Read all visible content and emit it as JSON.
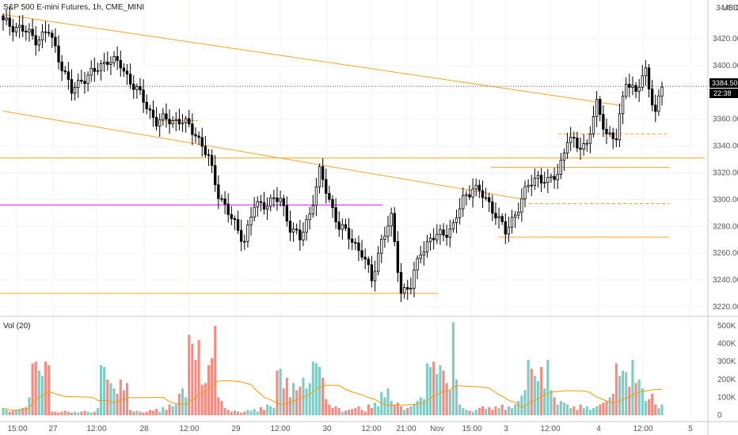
{
  "header": {
    "symbol_title": "S&P 500 E-mini Futures, 1h, CME_MINI",
    "currency": "USD",
    "volume_title": "Vol (20)"
  },
  "price_axis": {
    "min": 3220,
    "max": 3440,
    "ticks": [
      "3420.00",
      "3400.00",
      "3380.00",
      "3360.00",
      "3340.00",
      "3320.00",
      "3300.00",
      "3280.00",
      "3260.00",
      "3240.00",
      "3220.00"
    ],
    "top_tick": "3440.00"
  },
  "last_price": {
    "value": "3384.50",
    "countdown": "22:38"
  },
  "volume_axis": {
    "ticks": [
      "500K",
      "400K",
      "300K",
      "200K",
      "100K",
      "0"
    ]
  },
  "time_axis": {
    "labels": [
      "15:00",
      "27",
      "12:00",
      "28",
      "12:00",
      "29",
      "12:00",
      "30",
      "12:00",
      "21:00",
      "Nov",
      "15:00",
      "3",
      "12:00",
      "4",
      "12:00",
      "5"
    ]
  },
  "colors": {
    "up": "#26a69a",
    "down": "#ef5350",
    "candle_body": "#000000",
    "trend_line": "#f5a623",
    "magenta_line": "#e040fb",
    "volume_ma": "#ff9800",
    "volume_up": "#80cbc4",
    "volume_down": "#f28b82"
  },
  "chart_data": {
    "type": "candlestick",
    "price_anchors": [
      [
        0,
        3432
      ],
      [
        5,
        3428
      ],
      [
        10,
        3420
      ],
      [
        14,
        3425
      ],
      [
        18,
        3400
      ],
      [
        21,
        3380
      ],
      [
        24,
        3390
      ],
      [
        28,
        3395
      ],
      [
        32,
        3405
      ],
      [
        36,
        3400
      ],
      [
        40,
        3385
      ],
      [
        44,
        3370
      ],
      [
        47,
        3358
      ],
      [
        51,
        3360
      ],
      [
        55,
        3358
      ],
      [
        59,
        3350
      ],
      [
        63,
        3330
      ],
      [
        66,
        3305
      ],
      [
        70,
        3285
      ],
      [
        74,
        3270
      ],
      [
        77,
        3295
      ],
      [
        81,
        3298
      ],
      [
        85,
        3300
      ],
      [
        88,
        3280
      ],
      [
        91,
        3270
      ],
      [
        94,
        3290
      ],
      [
        97,
        3320
      ],
      [
        100,
        3300
      ],
      [
        103,
        3280
      ],
      [
        107,
        3270
      ],
      [
        110,
        3260
      ],
      [
        113,
        3240
      ],
      [
        116,
        3270
      ],
      [
        119,
        3285
      ],
      [
        122,
        3232
      ],
      [
        125,
        3235
      ],
      [
        128,
        3262
      ],
      [
        131,
        3270
      ],
      [
        135,
        3275
      ],
      [
        138,
        3280
      ],
      [
        141,
        3300
      ],
      [
        144,
        3310
      ],
      [
        148,
        3300
      ],
      [
        151,
        3290
      ],
      [
        154,
        3275
      ],
      [
        158,
        3295
      ],
      [
        161,
        3310
      ],
      [
        164,
        3318
      ],
      [
        167,
        3312
      ],
      [
        170,
        3320
      ],
      [
        173,
        3345
      ],
      [
        176,
        3340
      ],
      [
        179,
        3342
      ],
      [
        182,
        3370
      ],
      [
        185,
        3350
      ],
      [
        188,
        3345
      ],
      [
        191,
        3390
      ],
      [
        194,
        3380
      ],
      [
        197,
        3395
      ],
      [
        200,
        3365
      ],
      [
        202,
        3384.5
      ]
    ],
    "volume_values": [
      40,
      30,
      20,
      25,
      30,
      35,
      40,
      45,
      100,
      290,
      300,
      250,
      220,
      300,
      280,
      20,
      20,
      15,
      20,
      25,
      20,
      15,
      20,
      15,
      20,
      25,
      20,
      15,
      20,
      40,
      280,
      270,
      200,
      180,
      150,
      120,
      200,
      140,
      180,
      30,
      20,
      25,
      20,
      15,
      20,
      30,
      25,
      35,
      20,
      45,
      30,
      60,
      50,
      60,
      120,
      150,
      100,
      450,
      400,
      310,
      420,
      170,
      180,
      280,
      320,
      500,
      100,
      80,
      40,
      30,
      20,
      25,
      20,
      15,
      20,
      30,
      25,
      35,
      20,
      45,
      30,
      60,
      50,
      40,
      250,
      260,
      150,
      210,
      100,
      180,
      140,
      160,
      210,
      150,
      180,
      300,
      290,
      270,
      210,
      90,
      60,
      40,
      50,
      40,
      20,
      25,
      30,
      35,
      40,
      50,
      30,
      20,
      60,
      40,
      70,
      50,
      130,
      100,
      150,
      80,
      60,
      70,
      50,
      30,
      40,
      50,
      60,
      80,
      100,
      90,
      290,
      270,
      300,
      230,
      280,
      250,
      180,
      140,
      520,
      200,
      60,
      40,
      30,
      25,
      20,
      30,
      40,
      50,
      35,
      45,
      30,
      50,
      40,
      60,
      30,
      50,
      40,
      60,
      80,
      110,
      140,
      310,
      260,
      220,
      190,
      270,
      150,
      310,
      140,
      100,
      60,
      80,
      70,
      60,
      40,
      50,
      30,
      60,
      40,
      50,
      30,
      40,
      50,
      60,
      70,
      80,
      100,
      120,
      290,
      220,
      250,
      240,
      160,
      310,
      180,
      200,
      150,
      80,
      90,
      120,
      60,
      40,
      60
    ],
    "volume_unit": "K",
    "volume_ma_period": 20,
    "horizontal_levels": [
      {
        "price": 3331,
        "style": "solid",
        "color_key": "trend_line"
      },
      {
        "price": 3296,
        "style": "solid",
        "color_key": "magenta_line"
      },
      {
        "price": 3230,
        "style": "solid",
        "color_key": "trend_line"
      },
      {
        "price": 3349,
        "style": "dashed",
        "color_key": "trend_line"
      },
      {
        "price": 3297,
        "style": "dashed",
        "color_key": "trend_line"
      },
      {
        "price": 3324,
        "style": "solid",
        "color_key": "trend_line"
      },
      {
        "price": 3272,
        "style": "solid",
        "color_key": "trend_line"
      },
      {
        "price": 3359,
        "style": "solid",
        "color_key": "trend_line"
      }
    ],
    "trendlines": [
      {
        "from": [
          0,
          3438
        ],
        "to": [
          190,
          3370
        ]
      },
      {
        "from": [
          0,
          3366
        ],
        "to": [
          160,
          3300
        ]
      }
    ]
  }
}
